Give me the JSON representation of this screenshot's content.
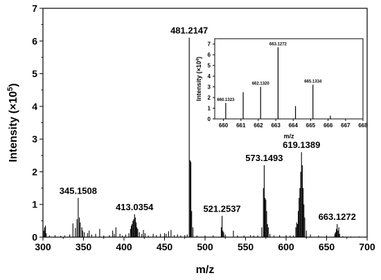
{
  "chart_data": [
    {
      "type": "bar",
      "xlabel": "m/z",
      "ylabel": "Intensity (×10",
      "ylabel_exp": "5",
      "ylabel_close": ")",
      "xlim": [
        300,
        700
      ],
      "ylim": [
        0,
        7
      ],
      "xticks": [
        300,
        350,
        400,
        450,
        500,
        550,
        600,
        650,
        700
      ],
      "yticks": [
        0,
        1,
        2,
        3,
        4,
        5,
        6,
        7
      ],
      "tick_labels_x": [
        "300",
        "350",
        "400",
        "450",
        "500",
        "550",
        "600",
        "650",
        "700"
      ],
      "tick_labels_y": [
        "0",
        "1",
        "2",
        "3",
        "4",
        "5",
        "6",
        "7"
      ],
      "labeled_peaks": [
        {
          "label": "345.1508",
          "x": 343.5,
          "y": 1.2
        },
        {
          "label": "413.0354",
          "x": 413.0,
          "y": 0.7
        },
        {
          "label": "481.2147",
          "x": 480.5,
          "y": 6.1
        },
        {
          "label": "521.2537",
          "x": 521.0,
          "y": 0.65
        },
        {
          "label": "573.1493",
          "x": 573.0,
          "y": 2.2
        },
        {
          "label": "619.1389",
          "x": 619.0,
          "y": 2.6
        },
        {
          "label": "663.1272",
          "x": 663.0,
          "y": 0.4
        }
      ],
      "peaks": [
        [
          301,
          0.2
        ],
        [
          302,
          0.3
        ],
        [
          303,
          0.35
        ],
        [
          304,
          0.12
        ],
        [
          308,
          0.05
        ],
        [
          315,
          0.06
        ],
        [
          322,
          0.04
        ],
        [
          327,
          0.05
        ],
        [
          333,
          0.08
        ],
        [
          337,
          0.42
        ],
        [
          340,
          0.28
        ],
        [
          342,
          0.55
        ],
        [
          343.5,
          1.2
        ],
        [
          345,
          0.6
        ],
        [
          346,
          0.45
        ],
        [
          348,
          0.3
        ],
        [
          349,
          0.2
        ],
        [
          351,
          0.15
        ],
        [
          355,
          0.12
        ],
        [
          357,
          0.2
        ],
        [
          360,
          0.08
        ],
        [
          365,
          0.1
        ],
        [
          370,
          0.25
        ],
        [
          375,
          0.05
        ],
        [
          382,
          0.06
        ],
        [
          386,
          0.2
        ],
        [
          388,
          0.1
        ],
        [
          390,
          0.3
        ],
        [
          395,
          0.1
        ],
        [
          398,
          0.05
        ],
        [
          402,
          0.08
        ],
        [
          406,
          0.12
        ],
        [
          408,
          0.25
        ],
        [
          409,
          0.35
        ],
        [
          410,
          0.4
        ],
        [
          411,
          0.5
        ],
        [
          412,
          0.55
        ],
        [
          413,
          0.7
        ],
        [
          414,
          0.6
        ],
        [
          415,
          0.45
        ],
        [
          416,
          0.3
        ],
        [
          417,
          0.25
        ],
        [
          419,
          0.15
        ],
        [
          422,
          0.1
        ],
        [
          424,
          0.22
        ],
        [
          426,
          0.12
        ],
        [
          430,
          0.05
        ],
        [
          436,
          0.1
        ],
        [
          440,
          0.06
        ],
        [
          445,
          0.1
        ],
        [
          450,
          0.12
        ],
        [
          452,
          0.1
        ],
        [
          455,
          0.18
        ],
        [
          458,
          0.22
        ],
        [
          462,
          0.06
        ],
        [
          466,
          0.08
        ],
        [
          470,
          0.05
        ],
        [
          475,
          0.06
        ],
        [
          478,
          0.08
        ],
        [
          480.5,
          6.1
        ],
        [
          481.5,
          2.35
        ],
        [
          482.5,
          2.3
        ],
        [
          483.5,
          0.8
        ],
        [
          485,
          0.3
        ],
        [
          490,
          0.05
        ],
        [
          500,
          0.05
        ],
        [
          510,
          0.05
        ],
        [
          520,
          0.3
        ],
        [
          521,
          0.65
        ],
        [
          522,
          0.2
        ],
        [
          523,
          0.15
        ],
        [
          525,
          0.08
        ],
        [
          535,
          0.2
        ],
        [
          540,
          0.05
        ],
        [
          548,
          0.05
        ],
        [
          556,
          0.06
        ],
        [
          560,
          0.05
        ],
        [
          565,
          0.05
        ],
        [
          570,
          0.3
        ],
        [
          572,
          1.5
        ],
        [
          573,
          2.2
        ],
        [
          574,
          1.2
        ],
        [
          575,
          1.15
        ],
        [
          576,
          0.8
        ],
        [
          577,
          0.4
        ],
        [
          578,
          0.3
        ],
        [
          580,
          0.1
        ],
        [
          585,
          0.05
        ],
        [
          592,
          0.06
        ],
        [
          600,
          0.06
        ],
        [
          605,
          0.05
        ],
        [
          609,
          0.05
        ],
        [
          612,
          0.3
        ],
        [
          613,
          0.45
        ],
        [
          614,
          0.4
        ],
        [
          615,
          0.8
        ],
        [
          616,
          1.2
        ],
        [
          617,
          1.5
        ],
        [
          618,
          2.0
        ],
        [
          619,
          2.6
        ],
        [
          620,
          2.2
        ],
        [
          621,
          1.5
        ],
        [
          622,
          1.0
        ],
        [
          623,
          0.6
        ],
        [
          625,
          0.2
        ],
        [
          630,
          0.08
        ],
        [
          640,
          0.05
        ],
        [
          650,
          0.05
        ],
        [
          660,
          0.1
        ],
        [
          661,
          0.15
        ],
        [
          662,
          0.25
        ],
        [
          663,
          0.4
        ],
        [
          664,
          0.2
        ],
        [
          665,
          0.3
        ],
        [
          666,
          0.1
        ],
        [
          670,
          0.03
        ],
        [
          680,
          0.02
        ],
        [
          690,
          0.02
        ]
      ]
    },
    {
      "type": "bar",
      "xlabel": "m/z",
      "ylabel": "Intensity (×10",
      "ylabel_exp": "4",
      "ylabel_close": ")",
      "xlim": [
        659.5,
        668
      ],
      "ylim": [
        0,
        7.5
      ],
      "xticks": [
        660,
        661,
        662,
        663,
        664,
        665,
        666,
        667,
        668
      ],
      "yticks": [
        0,
        1,
        2,
        3,
        4,
        5,
        6,
        7
      ],
      "tick_labels_x": [
        "660",
        "661",
        "662",
        "663",
        "664",
        "665",
        "666",
        "667",
        "668"
      ],
      "tick_labels_y": [
        "0",
        "1",
        "2",
        "3",
        "4",
        "5",
        "6",
        "7"
      ],
      "labeled_peaks": [
        {
          "label": "660.1323",
          "x": 660.13,
          "y": 1.5
        },
        {
          "label": "662.1320",
          "x": 662.13,
          "y": 3.0
        },
        {
          "label": "663.1272",
          "x": 663.13,
          "y": 6.7
        },
        {
          "label": "665.1334",
          "x": 665.13,
          "y": 3.2
        }
      ],
      "peaks": [
        [
          660.13,
          1.5
        ],
        [
          661.13,
          2.5
        ],
        [
          662.13,
          3.0
        ],
        [
          663.13,
          6.7
        ],
        [
          664.13,
          1.2
        ],
        [
          665.13,
          3.2
        ],
        [
          666.13,
          0.3
        ]
      ]
    }
  ]
}
